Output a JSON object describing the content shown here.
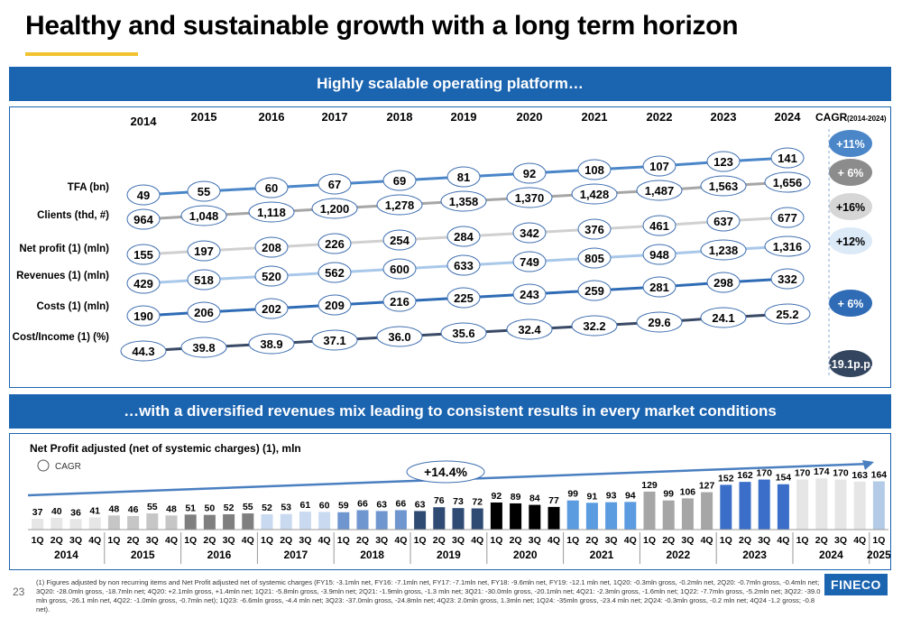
{
  "page_title": "Healthy and sustainable growth with a long term horizon",
  "banner_top": "Highly scalable operating platform…",
  "banner_bottom": "…with a diversified revenues mix leading to consistent results in every market conditions",
  "page_number": "23",
  "logo_text": "FINECO",
  "footnote": "(1) Figures adjusted by non recurring items and Net Profit adjusted net of systemic charges (FY15: -3.1mln net, FY16: -7.1mln net, FY17: -7.1mln net, FY18: -9.6mln net, FY19: -12.1 mln net, 1Q20: -0.3mln gross, -0.2mln net, 2Q20: -0.7mln gross, -0.4mln net; 3Q20: -28.0mln gross, -18.7mln net; 4Q20: +2.1mln gross, +1.4mln net; 1Q21: -5.8mln gross, -3.9mln net; 2Q21: -1.9mln gross, -1.3 mln net; 3Q21: -30.0mln gross, -20.1mln net; 4Q21: -2.3mln gross, -1.6mln net; 1Q22: -7.7mln gross, -5.2mln net; 3Q22: -39.0 mln gross, -26.1 mln net, 4Q22: -1.0mln gross, -0.7mln net); 1Q23: -6.6mln gross, -4.4 mln net; 3Q23: -37.0mln gross, -24.8mln net; 4Q23: 2.0mln gross, 1.3mln net; 1Q24: -35mln gross, -23.4 mln net; 2Q24: -0.3mln gross, -0.2 mln net; 4Q24 -1.2 gross; -0.8 net).",
  "chart_data": [
    {
      "type": "line",
      "years": [
        "2014",
        "2015",
        "2016",
        "2017",
        "2018",
        "2019",
        "2020",
        "2021",
        "2022",
        "2023",
        "2024"
      ],
      "cagr_title": "CAGR",
      "cagr_period": "(2014-2024)",
      "series": [
        {
          "name": "TFA (bn)",
          "values": [
            "49",
            "55",
            "60",
            "67",
            "69",
            "81",
            "92",
            "108",
            "107",
            "123",
            "141"
          ],
          "cagr": "+11%",
          "line_color": "#4a86c8",
          "cagr_color": "#4a86c8"
        },
        {
          "name": "Clients (thd, #)",
          "values": [
            "964",
            "1,048",
            "1,118",
            "1,200",
            "1,278",
            "1,358",
            "1,370",
            "1,428",
            "1,487",
            "1,563",
            "1,656"
          ],
          "cagr": "+ 6%",
          "line_color": "#a6a6a6",
          "cagr_color": "#8c8c8c"
        },
        {
          "name": "Net profit (1) (mln)",
          "values": [
            "155",
            "197",
            "208",
            "226",
            "254",
            "284",
            "342",
            "376",
            "461",
            "637",
            "677"
          ],
          "cagr": "+16%",
          "line_color": "#d0d0d0",
          "cagr_color": "#d6d6d6"
        },
        {
          "name": "Revenues (1) (mln)",
          "values": [
            "429",
            "518",
            "520",
            "562",
            "600",
            "633",
            "749",
            "805",
            "948",
            "1,238",
            "1,316"
          ],
          "cagr": "+12%",
          "line_color": "#a9c8ea",
          "cagr_color": "#dce9f7"
        },
        {
          "name": "Costs (1) (mln)",
          "values": [
            "190",
            "206",
            "202",
            "209",
            "216",
            "225",
            "243",
            "259",
            "281",
            "298",
            "332"
          ],
          "cagr": "+ 6%",
          "line_color": "#2f6cb5",
          "cagr_color": "#2f6cb5"
        },
        {
          "name": "Cost/Income (1) (%)",
          "values": [
            "44.3",
            "39.8",
            "38.9",
            "37.1",
            "36.0",
            "35.6",
            "32.4",
            "32.2",
            "29.6",
            "24.1",
            "25.2"
          ],
          "cagr": "-19.1p.p.",
          "line_color": "#3a4a66",
          "cagr_color": "#34465f"
        }
      ]
    },
    {
      "type": "bar",
      "title": "Net Profit adjusted (net of systemic charges) (1), mln",
      "legend": "CAGR",
      "cagr_label": "+14.4%",
      "quarters": [
        "1Q",
        "2Q",
        "3Q",
        "4Q"
      ],
      "groups": [
        {
          "year": "2014",
          "values": [
            37,
            40,
            36,
            41
          ],
          "color": "#e6e6e6"
        },
        {
          "year": "2015",
          "values": [
            48,
            46,
            55,
            48
          ],
          "color": "#c6c6c6"
        },
        {
          "year": "2016",
          "values": [
            51,
            50,
            52,
            55
          ],
          "color": "#7f7f7f"
        },
        {
          "year": "2017",
          "values": [
            52,
            53,
            61,
            60
          ],
          "color": "#c9daf0"
        },
        {
          "year": "2018",
          "values": [
            59,
            66,
            63,
            66
          ],
          "color": "#6f96cf"
        },
        {
          "year": "2019",
          "values": [
            63,
            76,
            73,
            72
          ],
          "color": "#2f4a73"
        },
        {
          "year": "2020",
          "values": [
            92,
            89,
            84,
            77
          ],
          "color": "#000000"
        },
        {
          "year": "2021",
          "values": [
            99,
            91,
            93,
            94
          ],
          "color": "#5b9be0"
        },
        {
          "year": "2022",
          "values": [
            129,
            99,
            106,
            127
          ],
          "color": "#a6a6a6"
        },
        {
          "year": "2023",
          "values": [
            152,
            162,
            170,
            154
          ],
          "color": "#3a6ec8"
        },
        {
          "year": "2024",
          "values": [
            170,
            174,
            170,
            163
          ],
          "color": "#e6e6e6"
        },
        {
          "year": "2025",
          "values": [
            164
          ],
          "color": "#b4cbe8"
        }
      ],
      "ylim": [
        0,
        190
      ]
    }
  ]
}
